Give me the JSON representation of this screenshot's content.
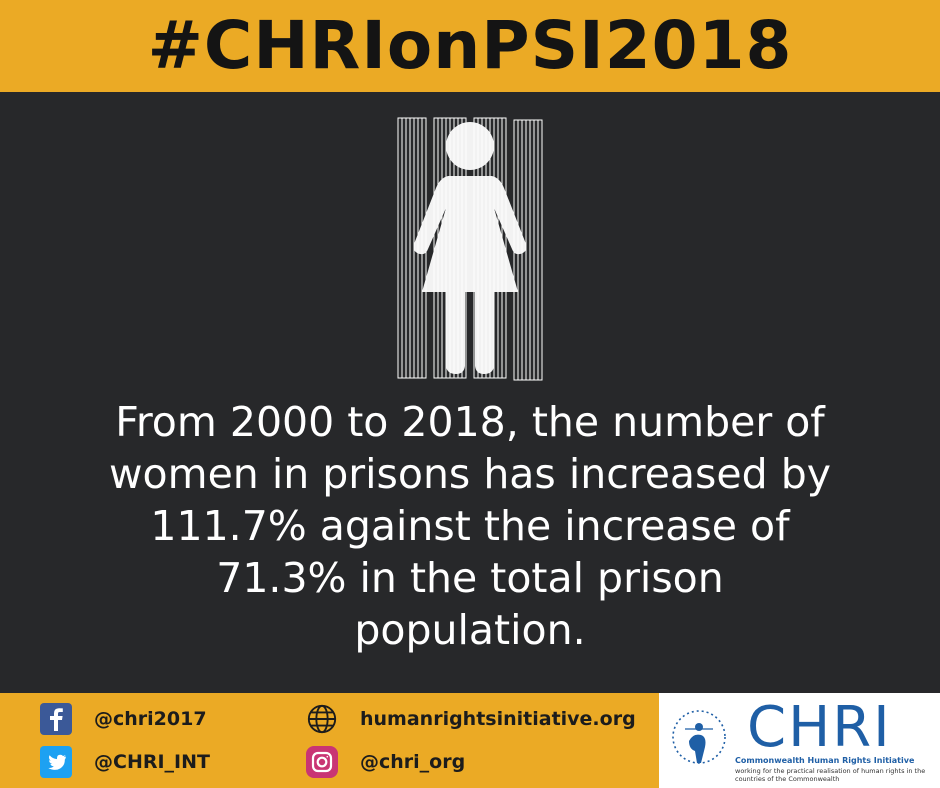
{
  "header": {
    "hashtag": "#CHRIonPSI2018"
  },
  "statement": {
    "lines": [
      "From 2000 to 2018, the number of",
      "women in prisons has increased by",
      "111.7% against the increase of",
      "71.3% in the total prison",
      "population."
    ]
  },
  "footer": {
    "facebook": {
      "icon": "facebook-icon",
      "handle": "@chri2017"
    },
    "twitter": {
      "icon": "twitter-icon",
      "handle": "@CHRI_INT"
    },
    "website": {
      "icon": "globe-icon",
      "url": "humanrightsinitiative.org"
    },
    "instagram": {
      "icon": "instagram-icon",
      "handle": "@chri_org"
    }
  },
  "logo": {
    "wordmark": "CHRI",
    "name": "Commonwealth Human Rights Initiative",
    "tagline": "working for the practical realisation of human rights in the countries of the Commonwealth"
  },
  "colors": {
    "accent_yellow": "#ebaa25",
    "background_dark": "#27282a",
    "brand_blue": "#1f5fa6",
    "facebook_blue": "#3b5998",
    "twitter_blue": "#1da1f2"
  }
}
